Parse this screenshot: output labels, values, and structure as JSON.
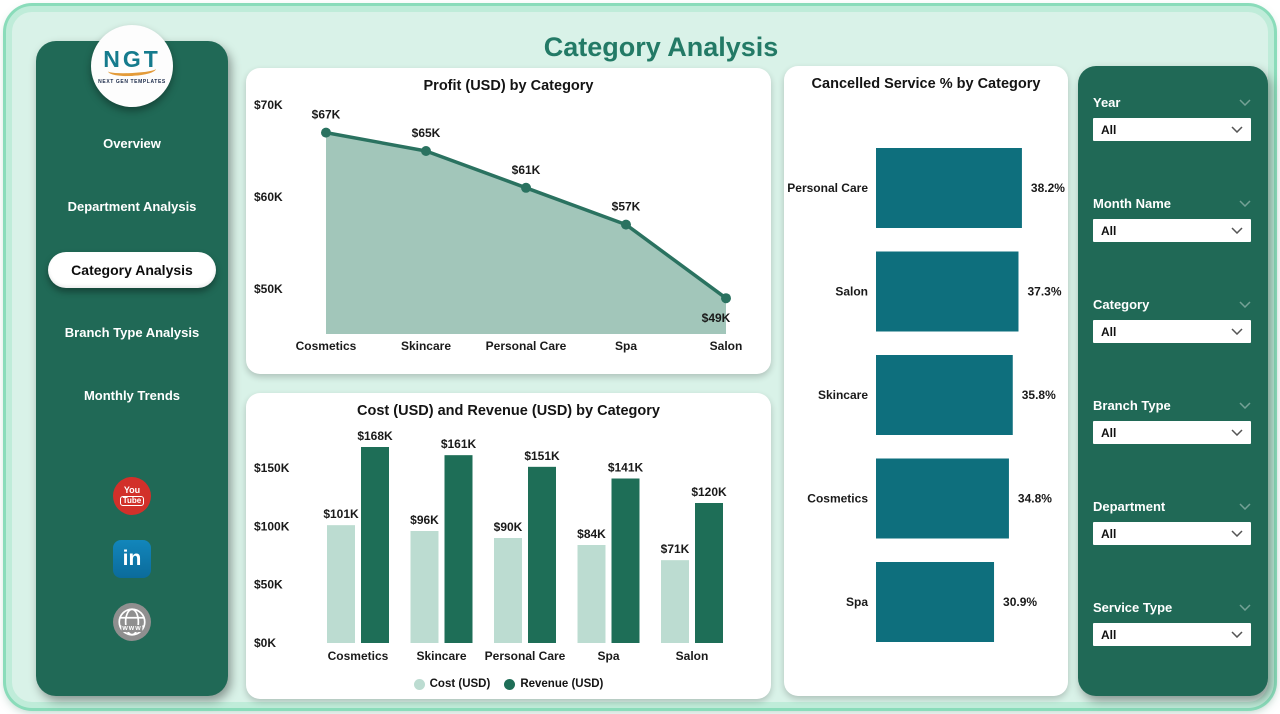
{
  "app": {
    "title": "Category Analysis"
  },
  "logo": {
    "text": "NGT",
    "subtext": "NEXT GEN TEMPLATES"
  },
  "sidebar": {
    "items": [
      {
        "label": "Overview",
        "active": false
      },
      {
        "label": "Department Analysis",
        "active": false
      },
      {
        "label": "Category Analysis",
        "active": true
      },
      {
        "label": "Branch Type Analysis",
        "active": false
      },
      {
        "label": "Monthly Trends",
        "active": false
      }
    ],
    "social": {
      "youtube": {
        "line1": "You",
        "line2": "Tube"
      },
      "linkedin": {
        "label": "in"
      },
      "website": {
        "label": "www"
      }
    }
  },
  "chart_data": [
    {
      "type": "area",
      "title": "Profit (USD) by Category",
      "categories": [
        "Cosmetics",
        "Skincare",
        "Personal Care",
        "Spa",
        "Salon"
      ],
      "values": [
        67,
        65,
        61,
        57,
        49
      ],
      "labels": [
        "$67K",
        "$65K",
        "$61K",
        "$57K",
        "$49K"
      ],
      "y_ticks": [
        {
          "value": 70,
          "label": "$70K"
        },
        {
          "value": 60,
          "label": "$60K"
        },
        {
          "value": 50,
          "label": "$50K"
        }
      ],
      "ylim": [
        45,
        71
      ],
      "grid": false,
      "colors": {
        "line": "#2a7260",
        "fill": "#a2c6ba"
      }
    },
    {
      "type": "bar",
      "title": "Cost (USD) and Revenue (USD) by Category",
      "categories": [
        "Cosmetics",
        "Skincare",
        "Personal Care",
        "Spa",
        "Salon"
      ],
      "series": [
        {
          "name": "Cost (USD)",
          "color": "#bcdcd1",
          "values": [
            101,
            96,
            90,
            84,
            71
          ],
          "labels": [
            "$101K",
            "$96K",
            "$90K",
            "$84K",
            "$71K"
          ]
        },
        {
          "name": "Revenue (USD)",
          "color": "#1e6e57",
          "values": [
            168,
            161,
            151,
            141,
            120
          ],
          "labels": [
            "$168K",
            "$161K",
            "$151K",
            "$141K",
            "$120K"
          ]
        }
      ],
      "y_ticks": [
        {
          "value": 0,
          "label": "$0K"
        },
        {
          "value": 50,
          "label": "$50K"
        },
        {
          "value": 100,
          "label": "$100K"
        },
        {
          "value": 150,
          "label": "$150K"
        }
      ],
      "ylim": [
        0,
        185
      ],
      "grid": false,
      "legend_position": "bottom"
    },
    {
      "type": "hbar",
      "title": "Cancelled Service % by Category",
      "categories": [
        "Personal Care",
        "Salon",
        "Skincare",
        "Cosmetics",
        "Spa"
      ],
      "values": [
        38.2,
        37.3,
        35.8,
        34.8,
        30.9
      ],
      "labels": [
        "38.2%",
        "37.3%",
        "35.8%",
        "34.8%",
        "30.9%"
      ],
      "xlim": [
        0,
        40
      ],
      "grid": false,
      "color": "#0e6f7d"
    }
  ],
  "filters": {
    "items": [
      {
        "label": "Year",
        "value": "All"
      },
      {
        "label": "Month Name",
        "value": "All"
      },
      {
        "label": "Category",
        "value": "All"
      },
      {
        "label": "Branch Type",
        "value": "All"
      },
      {
        "label": "Department",
        "value": "All"
      },
      {
        "label": "Service Type",
        "value": "All"
      }
    ]
  },
  "colors": {
    "panel_green": "#206956",
    "title_teal": "#237a66",
    "area_fill": "#a2c6ba",
    "area_line": "#2a7260",
    "cost_light": "#bcdcd1",
    "revenue_dark": "#1e6e57",
    "cancelled_teal": "#0e6f7d",
    "background_mint": "#d9f2e8"
  }
}
